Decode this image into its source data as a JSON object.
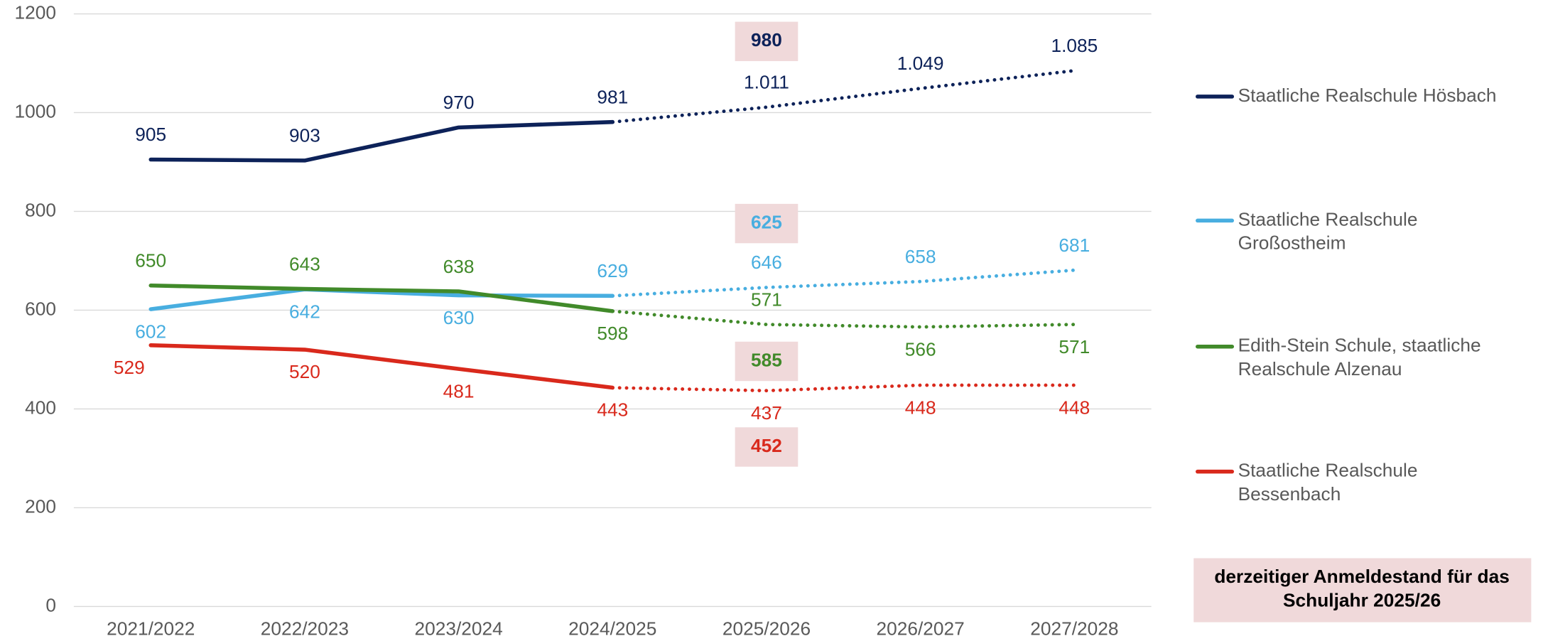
{
  "chart_data": {
    "type": "line",
    "categories": [
      "2021/2022",
      "2022/2023",
      "2023/2024",
      "2024/2025",
      "2025/2026",
      "2026/2027",
      "2027/2028"
    ],
    "forecast_from": "2024/2025",
    "ylim": [
      0,
      1200
    ],
    "yticks": [
      0,
      200,
      400,
      600,
      800,
      1000,
      1200
    ],
    "grid": true,
    "legend": "right",
    "series": [
      {
        "name": "Staatliche Realschule Hösbach",
        "color": "#0d2259",
        "values": [
          905,
          903,
          970,
          981,
          1011,
          1049,
          1085
        ],
        "value_labels": [
          "905",
          "903",
          "970",
          "981",
          "1.011",
          "1.049",
          "1.085"
        ],
        "registration": 980
      },
      {
        "name": "Staatliche Realschule Großostheim",
        "color": "#48aee0",
        "values": [
          602,
          642,
          630,
          629,
          646,
          658,
          681
        ],
        "registration": 625
      },
      {
        "name": "Edith-Stein Schule, staatliche Realschule Alzenau",
        "color": "#418a2a",
        "values": [
          650,
          643,
          638,
          598,
          571,
          566,
          571
        ],
        "registration": 585
      },
      {
        "name": "Staatliche Realschule Bessenbach",
        "color": "#d9291c",
        "values": [
          529,
          520,
          481,
          443,
          437,
          448,
          448
        ],
        "registration": 452
      }
    ],
    "registration_note": "derzeitiger Anmeldestand für das Schuljahr 2025/26"
  }
}
